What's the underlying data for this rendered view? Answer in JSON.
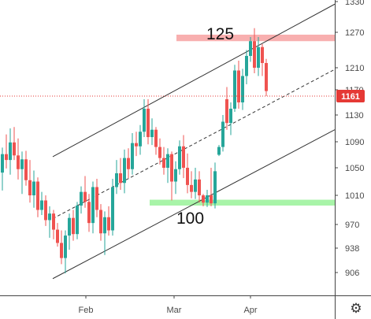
{
  "chart_data": {
    "type": "candlestick",
    "y_ticks": [
      906,
      938,
      970,
      1010,
      1050,
      1090,
      1130,
      1170,
      1210,
      1270,
      1330
    ],
    "x_ticks": [
      "Feb",
      "Mar",
      "Apr"
    ],
    "ylim": [
      875,
      1330
    ],
    "current_price": 1161,
    "annotations": [
      {
        "text": "125",
        "kind": "resistance-zone",
        "y_range": [
          1255,
          1266
        ],
        "x_range": [
          224,
          425
        ],
        "color": "#f7a6a6"
      },
      {
        "text": "100",
        "kind": "support-zone",
        "y_range": [
          996,
          1004
        ],
        "x_range": [
          190,
          426
        ],
        "color": "#9ef39e"
      }
    ],
    "channel": {
      "upper": [
        [
          67,
          1067
        ],
        [
          425,
          1325
        ]
      ],
      "middle": [
        [
          67,
          978
        ],
        [
          425,
          1207
        ]
      ],
      "lower": [
        [
          67,
          898
        ],
        [
          425,
          1108
        ]
      ]
    },
    "up_color": "#26a69a",
    "down_color": "#ef5350",
    "candles": [
      {
        "x": 3,
        "o": 1043,
        "h": 1081,
        "l": 1017,
        "c": 1071
      },
      {
        "x": 8,
        "o": 1071,
        "h": 1101,
        "l": 1049,
        "c": 1062
      },
      {
        "x": 13,
        "o": 1062,
        "h": 1110,
        "l": 1040,
        "c": 1089
      },
      {
        "x": 18,
        "o": 1089,
        "h": 1112,
        "l": 1062,
        "c": 1069
      },
      {
        "x": 23,
        "o": 1069,
        "h": 1095,
        "l": 1033,
        "c": 1048
      },
      {
        "x": 28,
        "o": 1048,
        "h": 1075,
        "l": 1012,
        "c": 1063
      },
      {
        "x": 33,
        "o": 1063,
        "h": 1076,
        "l": 1024,
        "c": 1032
      },
      {
        "x": 38,
        "o": 1032,
        "h": 1062,
        "l": 1000,
        "c": 1010
      },
      {
        "x": 43,
        "o": 1010,
        "h": 1046,
        "l": 993,
        "c": 1030
      },
      {
        "x": 48,
        "o": 1030,
        "h": 1036,
        "l": 980,
        "c": 990
      },
      {
        "x": 53,
        "o": 990,
        "h": 1015,
        "l": 983,
        "c": 1003
      },
      {
        "x": 58,
        "o": 1003,
        "h": 1010,
        "l": 968,
        "c": 976
      },
      {
        "x": 63,
        "o": 976,
        "h": 995,
        "l": 952,
        "c": 985
      },
      {
        "x": 68,
        "o": 985,
        "h": 990,
        "l": 950,
        "c": 963
      },
      {
        "x": 73,
        "o": 963,
        "h": 972,
        "l": 940,
        "c": 945
      },
      {
        "x": 78,
        "o": 945,
        "h": 962,
        "l": 917,
        "c": 925
      },
      {
        "x": 83,
        "o": 925,
        "h": 962,
        "l": 905,
        "c": 955
      },
      {
        "x": 88,
        "o": 955,
        "h": 985,
        "l": 936,
        "c": 979
      },
      {
        "x": 93,
        "o": 979,
        "h": 990,
        "l": 948,
        "c": 957
      },
      {
        "x": 98,
        "o": 957,
        "h": 1001,
        "l": 950,
        "c": 996
      },
      {
        "x": 103,
        "o": 996,
        "h": 1023,
        "l": 985,
        "c": 1015
      },
      {
        "x": 108,
        "o": 1015,
        "h": 1038,
        "l": 993,
        "c": 1001
      },
      {
        "x": 113,
        "o": 1001,
        "h": 1012,
        "l": 960,
        "c": 972
      },
      {
        "x": 118,
        "o": 972,
        "h": 1030,
        "l": 958,
        "c": 1022
      },
      {
        "x": 123,
        "o": 1022,
        "h": 1034,
        "l": 980,
        "c": 990
      },
      {
        "x": 128,
        "o": 990,
        "h": 998,
        "l": 948,
        "c": 958
      },
      {
        "x": 133,
        "o": 958,
        "h": 988,
        "l": 929,
        "c": 980
      },
      {
        "x": 138,
        "o": 980,
        "h": 995,
        "l": 955,
        "c": 962
      },
      {
        "x": 143,
        "o": 962,
        "h": 1034,
        "l": 955,
        "c": 1022
      },
      {
        "x": 148,
        "o": 1022,
        "h": 1062,
        "l": 1012,
        "c": 1042
      },
      {
        "x": 153,
        "o": 1042,
        "h": 1065,
        "l": 1018,
        "c": 1028
      },
      {
        "x": 158,
        "o": 1028,
        "h": 1078,
        "l": 1013,
        "c": 1065
      },
      {
        "x": 163,
        "o": 1065,
        "h": 1080,
        "l": 1035,
        "c": 1048
      },
      {
        "x": 168,
        "o": 1048,
        "h": 1103,
        "l": 1040,
        "c": 1088
      },
      {
        "x": 173,
        "o": 1088,
        "h": 1105,
        "l": 1068,
        "c": 1083
      },
      {
        "x": 178,
        "o": 1083,
        "h": 1115,
        "l": 1070,
        "c": 1105
      },
      {
        "x": 183,
        "o": 1105,
        "h": 1155,
        "l": 1097,
        "c": 1140
      },
      {
        "x": 188,
        "o": 1140,
        "h": 1155,
        "l": 1086,
        "c": 1097
      },
      {
        "x": 193,
        "o": 1097,
        "h": 1125,
        "l": 1085,
        "c": 1108
      },
      {
        "x": 198,
        "o": 1108,
        "h": 1112,
        "l": 1070,
        "c": 1082
      },
      {
        "x": 203,
        "o": 1082,
        "h": 1095,
        "l": 1055,
        "c": 1065
      },
      {
        "x": 208,
        "o": 1065,
        "h": 1082,
        "l": 1040,
        "c": 1050
      },
      {
        "x": 213,
        "o": 1050,
        "h": 1080,
        "l": 1028,
        "c": 1071
      },
      {
        "x": 218,
        "o": 1071,
        "h": 1075,
        "l": 1003,
        "c": 1030
      },
      {
        "x": 223,
        "o": 1030,
        "h": 1060,
        "l": 1012,
        "c": 1048
      },
      {
        "x": 228,
        "o": 1048,
        "h": 1092,
        "l": 1040,
        "c": 1083
      },
      {
        "x": 233,
        "o": 1083,
        "h": 1100,
        "l": 1035,
        "c": 1050
      },
      {
        "x": 238,
        "o": 1050,
        "h": 1072,
        "l": 1013,
        "c": 1025
      },
      {
        "x": 243,
        "o": 1025,
        "h": 1045,
        "l": 1006,
        "c": 1015
      },
      {
        "x": 248,
        "o": 1015,
        "h": 1050,
        "l": 1005,
        "c": 1033
      },
      {
        "x": 253,
        "o": 1033,
        "h": 1045,
        "l": 1000,
        "c": 1010
      },
      {
        "x": 258,
        "o": 1010,
        "h": 1012,
        "l": 995,
        "c": 1000
      },
      {
        "x": 263,
        "o": 1000,
        "h": 1018,
        "l": 994,
        "c": 1010
      },
      {
        "x": 268,
        "o": 1010,
        "h": 1050,
        "l": 995,
        "c": 999
      },
      {
        "x": 273,
        "o": 999,
        "h": 1058,
        "l": 992,
        "c": 1045
      },
      {
        "x": 278,
        "o": 1070,
        "h": 1085,
        "l": 1068,
        "c": 1082
      },
      {
        "x": 283,
        "o": 1082,
        "h": 1130,
        "l": 1075,
        "c": 1120
      },
      {
        "x": 288,
        "o": 1155,
        "h": 1175,
        "l": 1108,
        "c": 1118
      },
      {
        "x": 293,
        "o": 1118,
        "h": 1150,
        "l": 1100,
        "c": 1140
      },
      {
        "x": 298,
        "o": 1140,
        "h": 1215,
        "l": 1135,
        "c": 1205
      },
      {
        "x": 303,
        "o": 1205,
        "h": 1222,
        "l": 1140,
        "c": 1150
      },
      {
        "x": 308,
        "o": 1150,
        "h": 1208,
        "l": 1138,
        "c": 1195
      },
      {
        "x": 313,
        "o": 1195,
        "h": 1240,
        "l": 1180,
        "c": 1230
      },
      {
        "x": 318,
        "o": 1230,
        "h": 1262,
        "l": 1220,
        "c": 1255
      },
      {
        "x": 323,
        "o": 1255,
        "h": 1278,
        "l": 1200,
        "c": 1210
      },
      {
        "x": 328,
        "o": 1210,
        "h": 1262,
        "l": 1195,
        "c": 1245
      },
      {
        "x": 333,
        "o": 1245,
        "h": 1250,
        "l": 1195,
        "c": 1218
      },
      {
        "x": 338,
        "o": 1218,
        "h": 1225,
        "l": 1160,
        "c": 1168
      }
    ]
  }
}
